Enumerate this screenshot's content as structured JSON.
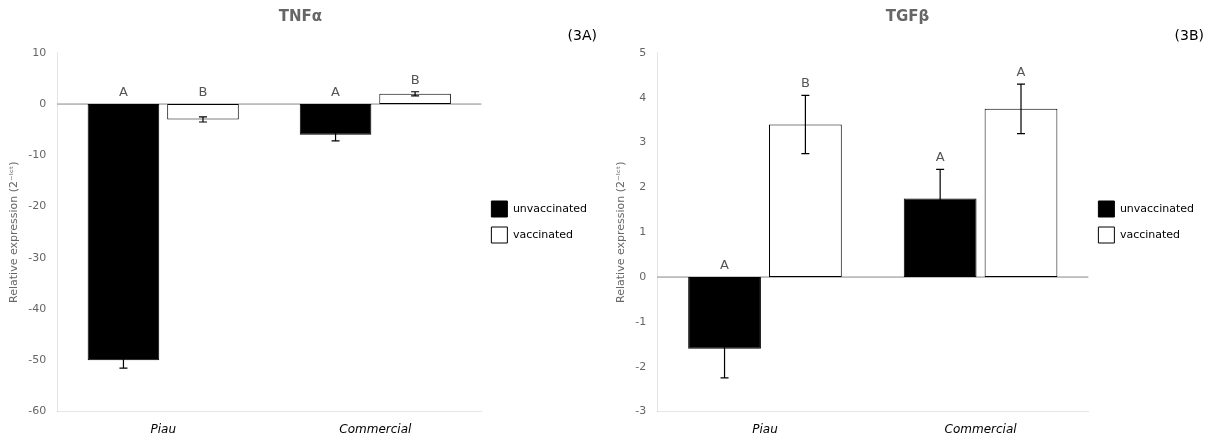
{
  "chart_data": [
    {
      "type": "bar",
      "title": "TNFα",
      "subtitle": "(3A)",
      "ylabel": "Relative expression (2⁻ᴵᶜᵗ)",
      "categories": [
        "Piau",
        "Commercial"
      ],
      "series": [
        {
          "name": "unvaccinated",
          "color": "#000000",
          "values": [
            -50.0,
            -6.0
          ],
          "errors": [
            1.5,
            1.2
          ],
          "annotations": [
            "A",
            "A"
          ]
        },
        {
          "name": "vaccinated",
          "color": "#ffffff",
          "values": [
            -3.0,
            2.0
          ],
          "errors": [
            0.5,
            0.4
          ],
          "annotations": [
            "B",
            "B"
          ]
        }
      ],
      "ylim": [
        -60,
        10
      ],
      "yticks": [
        -60,
        -50,
        -40,
        -30,
        -20,
        -10,
        0,
        10
      ],
      "grid": false,
      "legend": "right"
    },
    {
      "type": "bar",
      "title": "TGFβ",
      "subtitle": "(3B)",
      "ylabel": "Relative expression (2⁻ᴵᶜᵗ)",
      "categories": [
        "Piau",
        "Commercial"
      ],
      "series": [
        {
          "name": "unvaccinated",
          "color": "#000000",
          "values": [
            -1.6,
            1.75
          ],
          "errors": [
            0.65,
            0.65
          ],
          "annotations": [
            "A",
            "A"
          ]
        },
        {
          "name": "vaccinated",
          "color": "#ffffff",
          "values": [
            3.4,
            3.75
          ],
          "errors": [
            0.65,
            0.55
          ],
          "annotations": [
            "B",
            "A"
          ]
        }
      ],
      "ylim": [
        -3,
        5
      ],
      "yticks": [
        -3,
        -2,
        -1,
        0,
        1,
        2,
        3,
        4,
        5
      ],
      "grid": false,
      "legend": "right"
    }
  ]
}
